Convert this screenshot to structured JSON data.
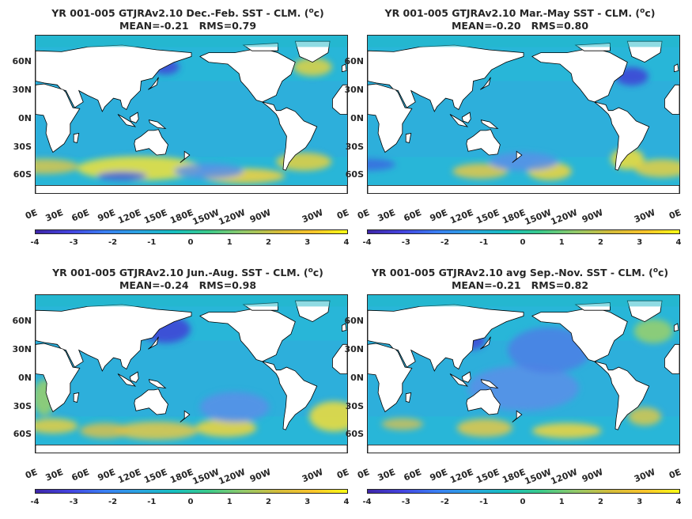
{
  "colorbar": {
    "ticks": [
      "-4",
      "-3",
      "-2",
      "-1",
      "0",
      "1",
      "2",
      "3",
      "4"
    ]
  },
  "lat_ticks": [
    "60N",
    "30N",
    "0N",
    "30S",
    "60S"
  ],
  "lon_ticks": [
    "0E",
    "30E",
    "60E",
    "90E",
    "120E",
    "150E",
    "180E",
    "150W",
    "120W",
    "90W",
    "30W",
    "0E"
  ],
  "panels": [
    {
      "title_prefix": "YR 001-005 GTJRAv2.10  Dec.-Feb. SST - CLM. (",
      "title_unit_sup": "o",
      "title_suffix": "c)",
      "stats": "MEAN=-0.21   RMS=0.79"
    },
    {
      "title_prefix": "YR 001-005 GTJRAv2.10 Mar.-May SST - CLM. (",
      "title_unit_sup": "o",
      "title_suffix": "c)",
      "stats": "MEAN=-0.20   RMS=0.80"
    },
    {
      "title_prefix": "YR 001-005 GTJRAv2.10 Jun.-Aug. SST - CLM. (",
      "title_unit_sup": "o",
      "title_suffix": "c)",
      "stats": "MEAN=-0.24   RMS=0.98"
    },
    {
      "title_prefix": "YR 001-005 GTJRAv2.10 avg Sep.-Nov. SST - CLM. (",
      "title_unit_sup": "o",
      "title_suffix": "c)",
      "stats": "MEAN=-0.21   RMS=0.82"
    }
  ],
  "colors": {
    "ocean": "#28b6d8",
    "land": "#ffffff",
    "coast": "#000000",
    "warm": "#f2e23a",
    "cold": "#4747d8"
  }
}
